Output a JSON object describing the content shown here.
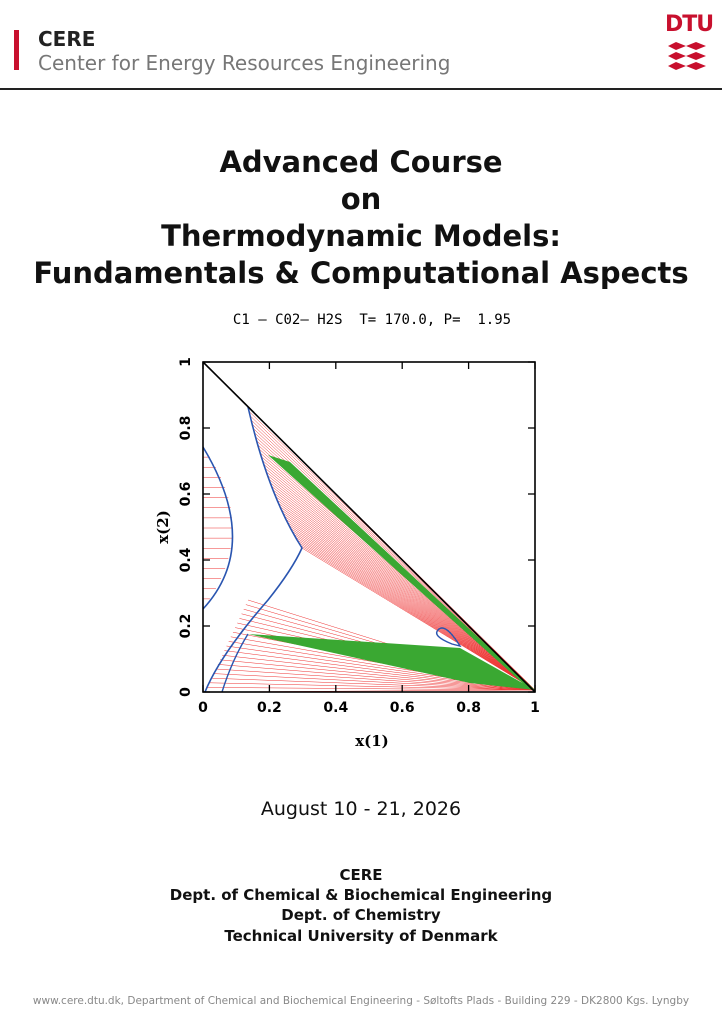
{
  "header": {
    "org": "CERE",
    "subtitle": "Center for Energy Resources Engineering",
    "logo": "DTU"
  },
  "title_lines": [
    "Advanced Course",
    "on",
    "Thermodynamic Models:",
    "Fundamentals & Computational Aspects"
  ],
  "chart_data": {
    "type": "phase-diagram",
    "title": "C1 – C02– H2S  T= 170.0, P=  1.95",
    "x_label": "x(1)",
    "y_label": "x(2)",
    "xlim": [
      0,
      1
    ],
    "ylim": [
      0,
      1
    ],
    "xticks": [
      0,
      0.2,
      0.4,
      0.6,
      0.8,
      1
    ],
    "yticks": [
      0,
      0.2,
      0.4,
      0.6,
      0.8,
      1
    ]
  },
  "date": "August 10 - 21, 2026",
  "organizers": [
    "CERE",
    "Dept. of Chemical & Biochemical Engineering",
    "Dept. of Chemistry",
    "Technical University of Denmark"
  ],
  "footer": "www.cere.dtu.dk, Department of Chemical and Biochemical Engineering - Søltofts Plads - Building 229 - DK2800 Kgs. Lyngby"
}
